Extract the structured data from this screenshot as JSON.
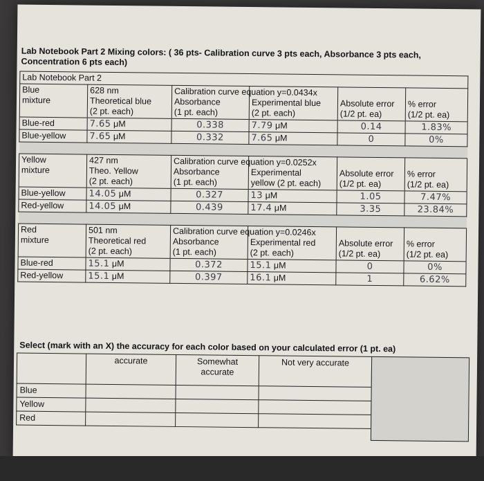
{
  "heading": {
    "line1": "Lab Notebook Part 2 Mixing colors: ( 36 pts- Calibration curve 3 pts each, Absorbance 3 pts each,",
    "line2": "Concentration 6 pts each)"
  },
  "table_title": "Lab Notebook Part 2",
  "blue": {
    "label1": "Blue",
    "label2": "mixture",
    "nm": "628 nm",
    "col1a": "Theoretical blue",
    "col1b": "(2 pt. each)",
    "eq": "Calibration curve equation y=0.0434x",
    "col2a": "Absorbance",
    "col2b": "(1 pt. each)",
    "col3a": "Experimental blue",
    "col3b": "(2 pt. each)",
    "col4a": "Absolute error",
    "col4b": "(1/2 pt. ea)",
    "col5a": "% error",
    "col5b": "(1/2 pt. ea)",
    "rows": [
      {
        "name": "Blue-red",
        "theo": "7.65",
        "abs": "0.338",
        "exp": "7.79",
        "abserr": "0.14",
        "pct": "1.83%"
      },
      {
        "name": "Blue-yellow",
        "theo": "7.65",
        "abs": "0.332",
        "exp": "7.65",
        "abserr": "0",
        "pct": "0%"
      }
    ]
  },
  "yellow": {
    "label1": "Yellow",
    "label2": "mixture",
    "nm": "427 nm",
    "col1a": "Theo. Yellow",
    "col1b": "(2 pt. each)",
    "eq": "Calibration curve equation y=0.0252x",
    "col2a": "Absorbance",
    "col2b": "(1 pt. each)",
    "col3a": "Experimental",
    "col3b": "yellow (2 pt. each)",
    "col4a": "Absolute error",
    "col4b": "(1/2 pt. ea)",
    "col5a": "% error",
    "col5b": "(1/2 pt. ea)",
    "rows": [
      {
        "name": "Blue-yellow",
        "theo": "14.05",
        "abs": "0.327",
        "exp": "13",
        "abserr": "1.05",
        "pct": "7.47%"
      },
      {
        "name": "Red-yellow",
        "theo": "14.05",
        "abs": "0.439",
        "exp": "17.4",
        "abserr": "3.35",
        "pct": "23.84%"
      }
    ]
  },
  "red": {
    "label1": "Red",
    "label2": "mixture",
    "nm": "501 nm",
    "col1a": "Theoretical red",
    "col1b": "(2 pt. each)",
    "eq": "Calibration curve equation y=0.0246x",
    "col2a": "Absorbance",
    "col2b": "(1 pt. each)",
    "col3a": "Experimental red",
    "col3b": "(2 pt. each)",
    "col4a": "Absolute error",
    "col4b": "(1/2 pt. ea)",
    "col5a": "% error",
    "col5b": "(1/2 pt. ea)",
    "rows": [
      {
        "name": "Blue-red",
        "theo": "15.1",
        "abs": "0.372",
        "exp": "15.1",
        "abserr": "0",
        "pct": "0%"
      },
      {
        "name": "Red-yellow",
        "theo": "15.1",
        "abs": "0.397",
        "exp": "16.1",
        "abserr": "1",
        "pct": "6.62%"
      }
    ]
  },
  "unit": "μM",
  "accuracy": {
    "prompt": "Select (mark with an X) the accuracy for each color based on your calculated error (1 pt. ea)",
    "headers": [
      "accurate",
      "Somewhat",
      "Not very accurate"
    ],
    "somewhat2": "accurate",
    "rows": [
      "Blue",
      "Yellow",
      "Red"
    ]
  }
}
